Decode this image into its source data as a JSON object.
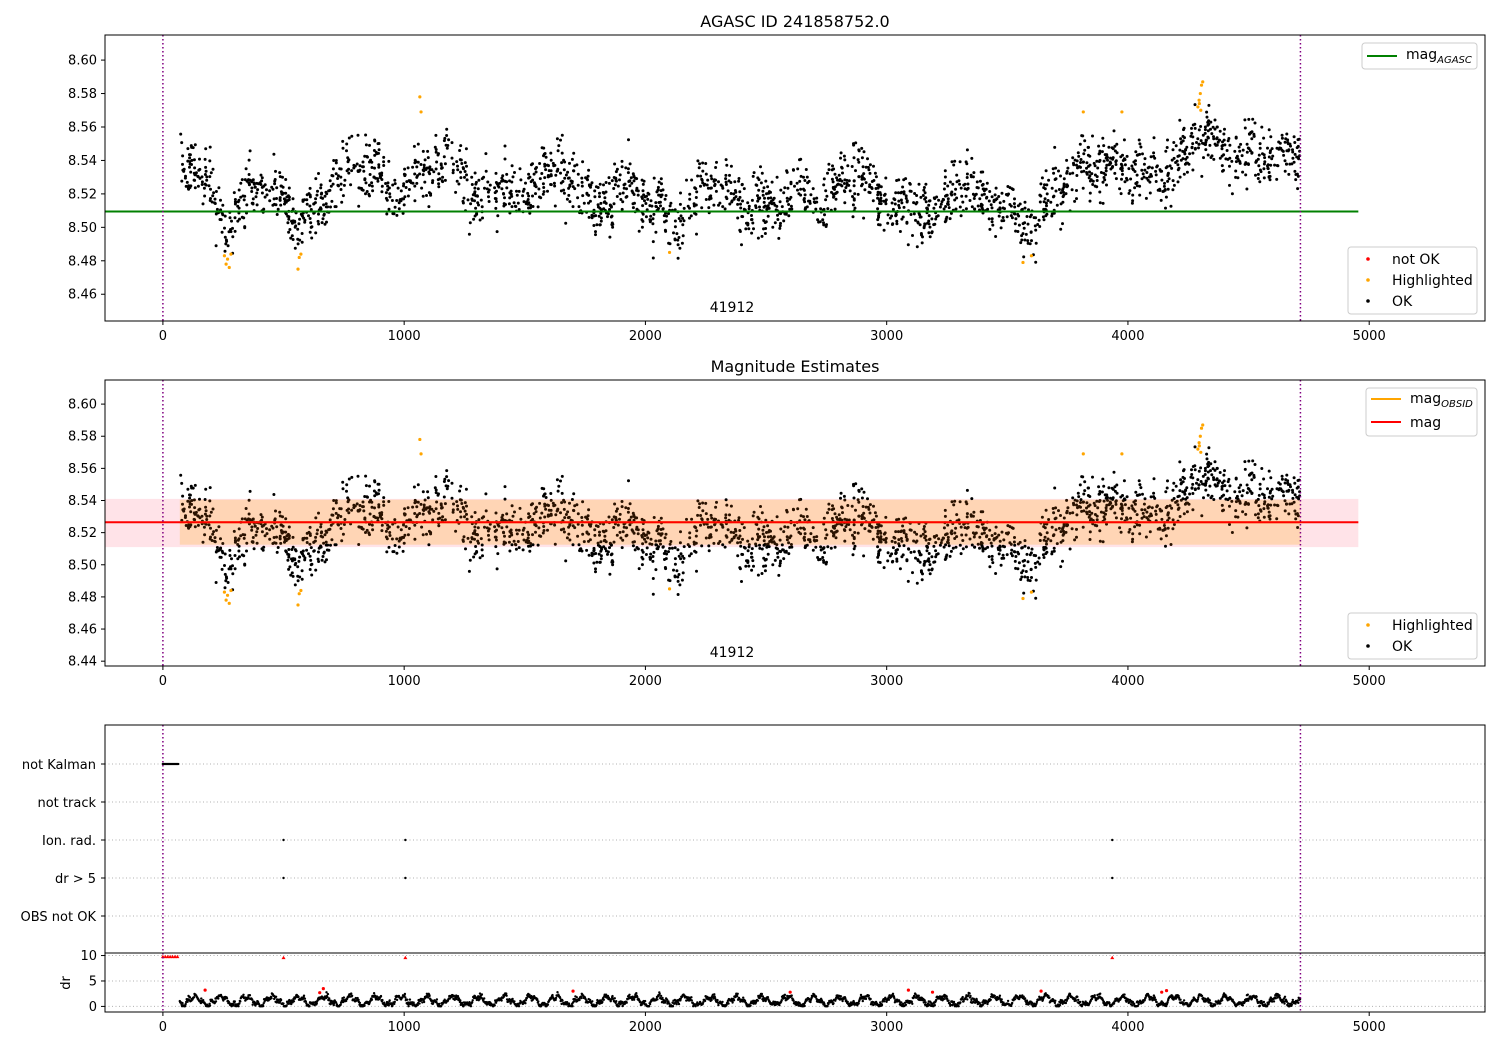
{
  "chart_data": [
    {
      "type": "scatter",
      "title": "AGASC ID 241858752.0",
      "annotation": "41912",
      "xlim": [
        -240,
        5480
      ],
      "ylim": [
        8.444,
        8.615
      ],
      "xticks": [
        0,
        1000,
        2000,
        3000,
        4000,
        5000
      ],
      "yticks": [
        8.46,
        8.48,
        8.5,
        8.52,
        8.54,
        8.56,
        8.58,
        8.6
      ],
      "grid": false,
      "vlines": [
        0,
        4715
      ],
      "hline": {
        "label": "mag_AGASC",
        "value": 8.5095,
        "x_range": [
          -240,
          4955
        ],
        "color": "#008000"
      },
      "legend_upper": {
        "placement": "upper-right",
        "entries": [
          {
            "label": "mag",
            "subscript": "AGASC",
            "color": "#008000"
          }
        ]
      },
      "legend_lower": {
        "placement": "lower-right",
        "entries": [
          {
            "label": "not OK",
            "color": "#ff0000"
          },
          {
            "label": "Highlighted",
            "color": "#ffa500"
          },
          {
            "label": "OK",
            "color": "#000000"
          }
        ]
      },
      "series": [
        {
          "name": "OK",
          "color": "#000000",
          "x_range": [
            70,
            4715
          ],
          "points": 2400,
          "trend": [
            [
              70,
              8.545
            ],
            [
              180,
              8.525
            ],
            [
              270,
              8.5
            ],
            [
              360,
              8.525
            ],
            [
              500,
              8.52
            ],
            [
              570,
              8.5
            ],
            [
              700,
              8.525
            ],
            [
              850,
              8.54
            ],
            [
              950,
              8.52
            ],
            [
              1080,
              8.535
            ],
            [
              1200,
              8.54
            ],
            [
              1300,
              8.515
            ],
            [
              1400,
              8.528
            ],
            [
              1480,
              8.515
            ],
            [
              1580,
              8.535
            ],
            [
              1700,
              8.528
            ],
            [
              1800,
              8.512
            ],
            [
              1920,
              8.528
            ],
            [
              2020,
              8.512
            ],
            [
              2140,
              8.5
            ],
            [
              2250,
              8.53
            ],
            [
              2400,
              8.515
            ],
            [
              2550,
              8.512
            ],
            [
              2650,
              8.52
            ],
            [
              2750,
              8.512
            ],
            [
              2850,
              8.535
            ],
            [
              3000,
              8.515
            ],
            [
              3100,
              8.512
            ],
            [
              3200,
              8.505
            ],
            [
              3300,
              8.53
            ],
            [
              3400,
              8.518
            ],
            [
              3500,
              8.512
            ],
            [
              3600,
              8.5
            ],
            [
              3700,
              8.522
            ],
            [
              3850,
              8.54
            ],
            [
              4000,
              8.535
            ],
            [
              4150,
              8.53
            ],
            [
              4250,
              8.545
            ],
            [
              4320,
              8.56
            ],
            [
              4400,
              8.545
            ],
            [
              4550,
              8.54
            ],
            [
              4715,
              8.545
            ]
          ]
        },
        {
          "name": "Highlighted",
          "color": "#ffa500",
          "points": [
            [
              255,
              8.483
            ],
            [
              262,
              8.478
            ],
            [
              268,
              8.481
            ],
            [
              275,
              8.476
            ],
            [
              282,
              8.484
            ],
            [
              560,
              8.475
            ],
            [
              565,
              8.482
            ],
            [
              572,
              8.484
            ],
            [
              1065,
              8.578
            ],
            [
              1070,
              8.569
            ],
            [
              2100,
              8.485
            ],
            [
              3565,
              8.479
            ],
            [
              3600,
              8.483
            ],
            [
              3815,
              8.569
            ],
            [
              3975,
              8.569
            ],
            [
              4290,
              8.572
            ],
            [
              4295,
              8.576
            ],
            [
              4300,
              8.58
            ],
            [
              4305,
              8.585
            ],
            [
              4310,
              8.587
            ],
            [
              4302,
              8.57
            ],
            [
              4296,
              8.574
            ]
          ]
        },
        {
          "name": "not OK",
          "color": "#ff0000",
          "points": []
        }
      ]
    },
    {
      "type": "scatter",
      "title": "Magnitude Estimates",
      "annotation": "41912",
      "xlim": [
        -240,
        5480
      ],
      "ylim": [
        8.437,
        8.615
      ],
      "xticks": [
        0,
        1000,
        2000,
        3000,
        4000,
        5000
      ],
      "yticks": [
        8.44,
        8.46,
        8.48,
        8.5,
        8.52,
        8.54,
        8.56,
        8.58,
        8.6
      ],
      "grid": false,
      "vlines": [
        0,
        4715
      ],
      "mag": {
        "value": 8.5265,
        "band": [
          8.511,
          8.541
        ],
        "x_range": [
          -240,
          4955
        ],
        "color": "#ff0000"
      },
      "mag_obsid": {
        "value": 8.5265,
        "band": [
          8.5125,
          8.5405
        ],
        "x_range": [
          70,
          4715
        ],
        "color": "#ffa500"
      },
      "legend_upper": {
        "placement": "upper-right",
        "entries": [
          {
            "label": "mag",
            "subscript": "OBSID",
            "color": "#ffa500"
          },
          {
            "label": "mag",
            "subscript": "",
            "color": "#ff0000"
          }
        ]
      },
      "legend_lower": {
        "placement": "lower-right",
        "entries": [
          {
            "label": "Highlighted",
            "color": "#ffa500"
          },
          {
            "label": "OK",
            "color": "#000000"
          }
        ]
      }
    },
    {
      "type": "scatter",
      "title": "",
      "xlim": [
        -240,
        5480
      ],
      "categories": [
        "not Kalman",
        "not track",
        "Ion. rad.",
        "dr > 5",
        "OBS not OK"
      ],
      "grid": "horizontal-dotted",
      "vlines": [
        0,
        4715
      ],
      "flags": {
        "not Kalman": [
          [
            0,
            65
          ]
        ],
        "not track": [],
        "Ion. rad.": [
          500,
          1005,
          3935
        ],
        "dr > 5": [
          500,
          1005,
          3935
        ],
        "OBS not OK": []
      }
    },
    {
      "type": "scatter",
      "title": "",
      "ylabel": "dr",
      "xlim": [
        -240,
        5480
      ],
      "ylim": [
        -1.1,
        10.5
      ],
      "yticks": [
        0,
        5,
        10
      ],
      "xticks": [
        0,
        1000,
        2000,
        3000,
        4000,
        5000
      ],
      "grid": "horizontal-dotted",
      "vlines": [
        0,
        4715
      ],
      "dr_flag_points": [
        [
          0,
          9.8
        ],
        [
          10,
          9.8
        ],
        [
          20,
          9.8
        ],
        [
          30,
          9.8
        ],
        [
          40,
          9.8
        ],
        [
          50,
          9.8
        ],
        [
          60,
          9.8
        ],
        [
          500,
          9.6
        ],
        [
          1005,
          9.6
        ],
        [
          3935,
          9.6
        ]
      ],
      "dr_red_points": [
        [
          175,
          3.2
        ],
        [
          650,
          2.7
        ],
        [
          665,
          3.5
        ],
        [
          1700,
          3.0
        ],
        [
          2600,
          2.8
        ],
        [
          3090,
          3.2
        ],
        [
          3190,
          2.8
        ],
        [
          3640,
          3.0
        ],
        [
          4140,
          2.8
        ],
        [
          4160,
          3.1
        ]
      ],
      "dr_range": [
        0,
        2.4
      ]
    }
  ]
}
